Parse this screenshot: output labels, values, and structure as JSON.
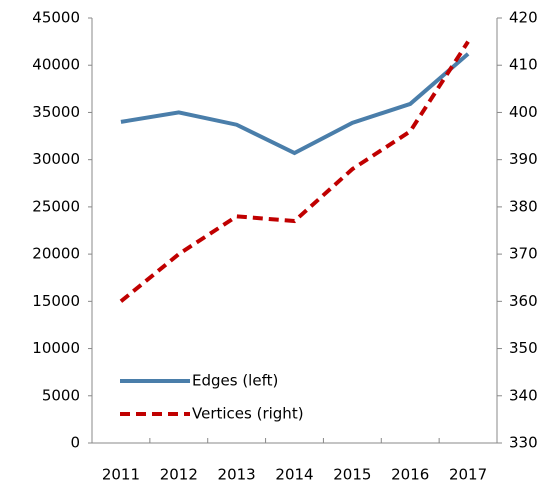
{
  "chart_data": {
    "type": "line",
    "categories": [
      "2011",
      "2012",
      "2013",
      "2014",
      "2015",
      "2016",
      "2017"
    ],
    "series": [
      {
        "name": "Edges (left)",
        "color": "#4a7eaa",
        "values": [
          34000,
          35000,
          33700,
          30700,
          33900,
          35900,
          41200
        ]
      },
      {
        "name": "Vertices (right)",
        "color": "#c00000",
        "axis": "y2",
        "dashed": true,
        "values": [
          360,
          370,
          378,
          377,
          388,
          396,
          415
        ]
      }
    ],
    "ylim": [
      0,
      45000
    ],
    "yticks": [
      0,
      5000,
      10000,
      15000,
      20000,
      25000,
      30000,
      35000,
      40000,
      45000
    ],
    "y2lim": [
      330,
      420
    ],
    "y2ticks": [
      330,
      340,
      350,
      360,
      370,
      380,
      390,
      400,
      410,
      420
    ],
    "legend": "lower-left"
  }
}
